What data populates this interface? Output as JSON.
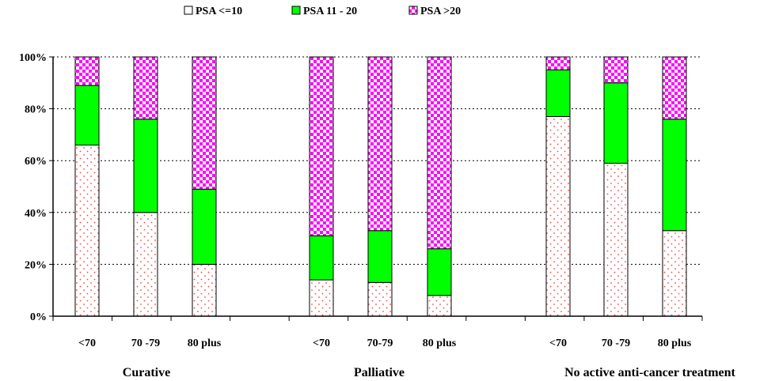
{
  "chart_data": {
    "type": "bar",
    "stacked": true,
    "percent_stacked": true,
    "title": "",
    "xlabel": "",
    "ylabel": "",
    "ylim": [
      0,
      100
    ],
    "y_ticks": [
      "0%",
      "20%",
      "40%",
      "60%",
      "80%",
      "100%"
    ],
    "grid": "horizontal dotted",
    "legend_position": "top-center",
    "groups": [
      {
        "label": "Curative",
        "categories": [
          "<70",
          "70 -79",
          "80 plus"
        ]
      },
      {
        "label": "Palliative",
        "categories": [
          "<70",
          "70-79",
          "80 plus"
        ]
      },
      {
        "label": "No active anti-cancer treatment",
        "categories": [
          "<70",
          "70 -79",
          "80 plus"
        ]
      }
    ],
    "series": [
      {
        "name": "PSA <=10",
        "color": "#ff6666",
        "pattern": "dots",
        "values": [
          66,
          40,
          20,
          14,
          13,
          8,
          77,
          59,
          33
        ]
      },
      {
        "name": "PSA 11 - 20",
        "color": "#00ff00",
        "pattern": "solid",
        "values": [
          23,
          36,
          29,
          17,
          20,
          18,
          18,
          31,
          43
        ]
      },
      {
        "name": "PSA >20",
        "color": "#ff00ff",
        "pattern": "checker",
        "values": [
          11,
          24,
          51,
          69,
          67,
          74,
          5,
          10,
          24
        ]
      }
    ]
  }
}
